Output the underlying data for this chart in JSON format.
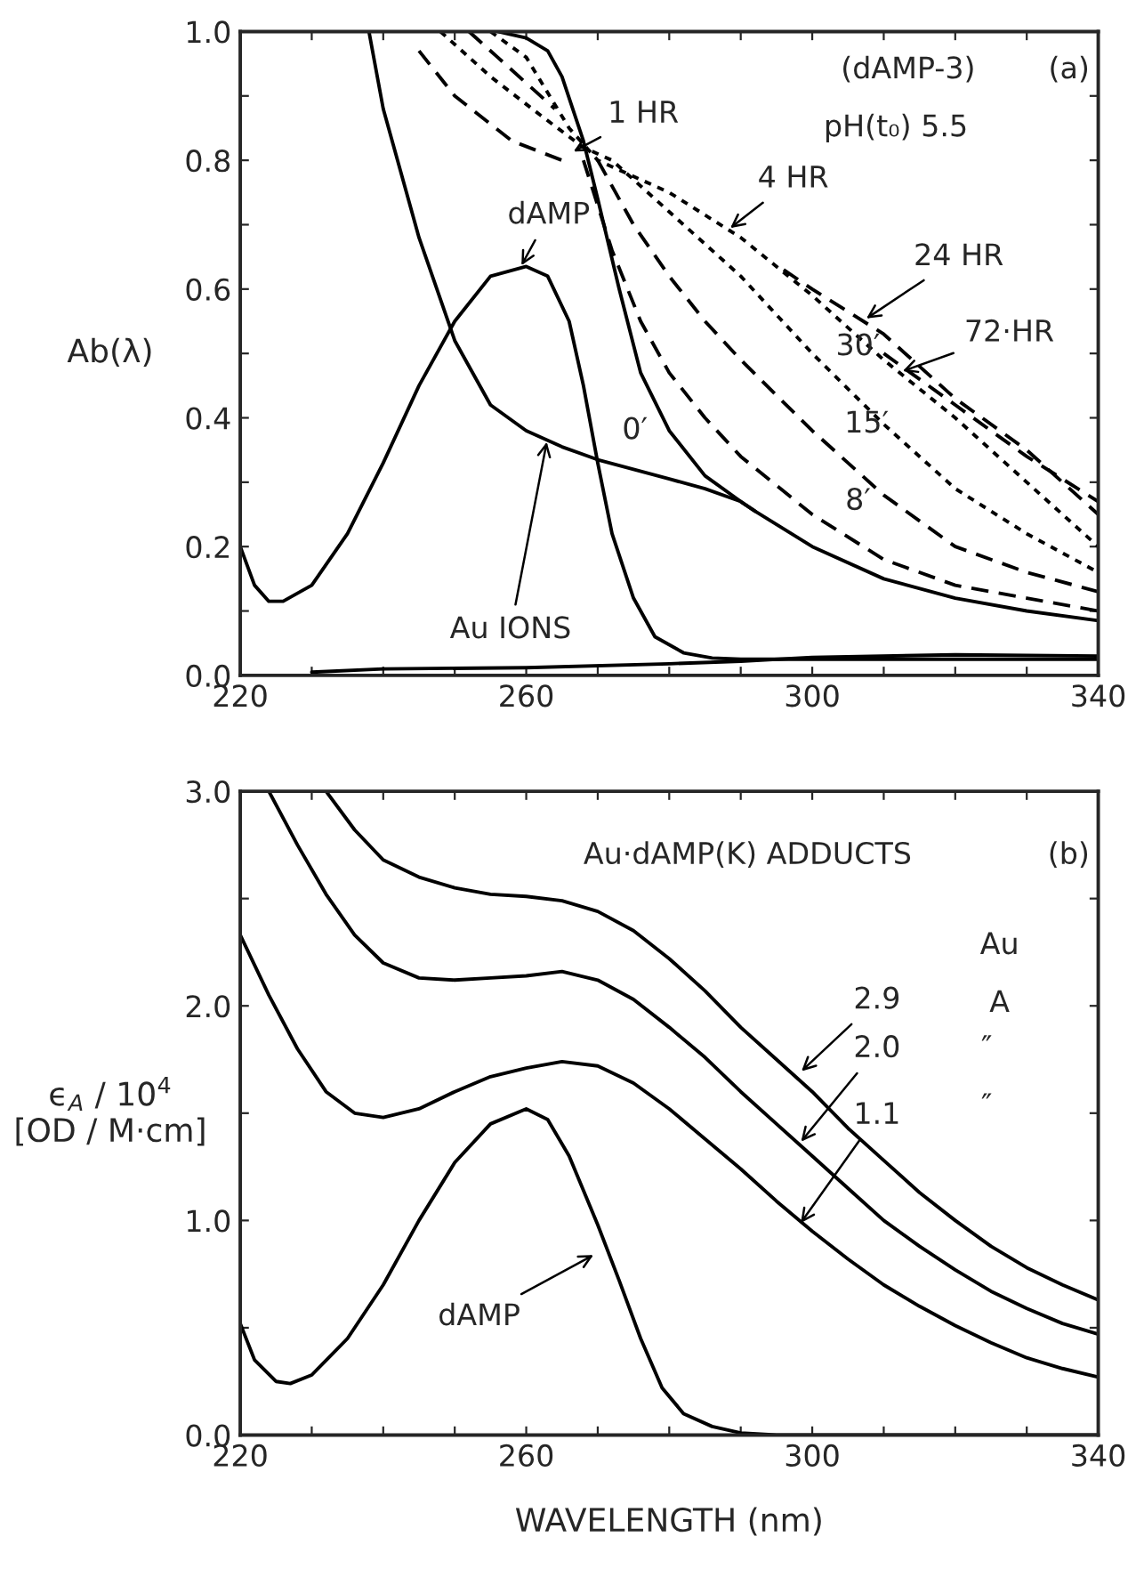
{
  "chart_data": [
    {
      "type": "line",
      "xlim": [
        220,
        340
      ],
      "ylim": [
        0,
        1.0
      ],
      "xticks": [
        220,
        {
          "value": 230,
          "label": null
        },
        {
          "value": 240,
          "label": null
        },
        {
          "value": 250,
          "label": null
        },
        260,
        {
          "value": 270,
          "label": null
        },
        {
          "value": 280,
          "label": null
        },
        {
          "value": 290,
          "label": null
        },
        300,
        {
          "value": 310,
          "label": null
        },
        {
          "value": 320,
          "label": null
        },
        {
          "value": 330,
          "label": null
        },
        340
      ],
      "yticks": [
        {
          "value": 0,
          "label": "0.0"
        },
        {
          "value": 0.1,
          "label": null
        },
        {
          "value": 0.2,
          "label": "0.2"
        },
        {
          "value": 0.3,
          "label": null
        },
        {
          "value": 0.4,
          "label": "0.4"
        },
        {
          "value": 0.5,
          "label": null
        },
        {
          "value": 0.6,
          "label": "0.6"
        },
        {
          "value": 0.7,
          "label": null
        },
        {
          "value": 0.8,
          "label": "0.8"
        },
        {
          "value": 0.9,
          "label": null
        },
        {
          "value": 1.0,
          "label": "1.0"
        }
      ],
      "ylabel": "Ab(λ)",
      "grid": false,
      "legend": false,
      "series": [
        {
          "color": "#000000",
          "line_style": "solid",
          "x": [
            220,
            222,
            224,
            226,
            230,
            235,
            240,
            245,
            250,
            255,
            260,
            263,
            266,
            268,
            270,
            272,
            275,
            278,
            282,
            286,
            290,
            300,
            340
          ],
          "values": [
            0.2,
            0.14,
            0.115,
            0.115,
            0.14,
            0.22,
            0.33,
            0.45,
            0.55,
            0.62,
            0.635,
            0.62,
            0.55,
            0.45,
            0.33,
            0.22,
            0.12,
            0.06,
            0.035,
            0.027,
            0.025,
            0.025,
            0.025
          ]
        },
        {
          "color": "#000000",
          "line_style": "solid",
          "x": [
            238,
            240,
            245,
            250,
            255,
            260,
            265,
            270,
            275,
            280,
            285,
            290,
            292,
            300,
            310,
            320,
            330,
            340
          ],
          "values": [
            1.0,
            0.88,
            0.68,
            0.52,
            0.42,
            0.38,
            0.355,
            0.335,
            0.32,
            0.305,
            0.29,
            0.27,
            0.255,
            0.2,
            0.15,
            0.12,
            0.1,
            0.085
          ]
        },
        {
          "color": "#000000",
          "line_style": "solid",
          "x": [
            256,
            260,
            263,
            265,
            268,
            270,
            273,
            276,
            280,
            285,
            290,
            292
          ],
          "values": [
            1.0,
            0.99,
            0.97,
            0.93,
            0.83,
            0.74,
            0.6,
            0.47,
            0.38,
            0.31,
            0.27,
            0.255
          ]
        },
        {
          "color": "#000000",
          "line_style": "solid",
          "x": [
            230,
            240,
            260,
            280,
            290,
            300,
            320,
            340
          ],
          "values": [
            0.005,
            0.01,
            0.012,
            0.018,
            0.022,
            0.028,
            0.032,
            0.03
          ]
        },
        {
          "color": "#000000",
          "line_style": "dashed",
          "x": [
            268,
            272,
            276,
            280,
            285,
            290,
            300,
            310,
            320,
            330,
            340
          ],
          "values": [
            0.8,
            0.66,
            0.55,
            0.47,
            0.4,
            0.34,
            0.25,
            0.18,
            0.14,
            0.12,
            0.1
          ]
        },
        {
          "color": "#000000",
          "line_style": "dashed",
          "x": [
            270,
            275,
            280,
            285,
            290,
            300,
            310,
            320,
            330,
            340
          ],
          "values": [
            0.8,
            0.7,
            0.62,
            0.55,
            0.49,
            0.38,
            0.28,
            0.2,
            0.16,
            0.13
          ]
        },
        {
          "color": "#000000",
          "line_style": "dotted",
          "x": [
            248,
            255,
            262,
            268,
            272,
            280,
            290,
            300,
            310,
            320,
            330,
            340
          ],
          "values": [
            1.0,
            0.93,
            0.87,
            0.82,
            0.8,
            0.72,
            0.62,
            0.5,
            0.39,
            0.29,
            0.22,
            0.16
          ]
        },
        {
          "color": "#000000",
          "line_style": "dashed",
          "x": [
            252,
            256,
            260,
            264
          ],
          "values": [
            1.0,
            0.96,
            0.92,
            0.88
          ]
        },
        {
          "color": "#000000",
          "line_style": "dotted",
          "x": [
            255,
            260,
            266,
            270,
            280,
            290,
            300,
            310,
            320,
            330,
            340
          ],
          "values": [
            1.0,
            0.96,
            0.85,
            0.8,
            0.75,
            0.68,
            0.59,
            0.49,
            0.4,
            0.3,
            0.2
          ]
        },
        {
          "color": "#000000",
          "line_style": "dashed",
          "x": [
            245,
            250,
            258,
            265
          ],
          "values": [
            0.97,
            0.9,
            0.83,
            0.8
          ]
        },
        {
          "color": "#000000",
          "line_style": "dashed",
          "x": [
            296,
            300,
            310,
            320,
            330,
            340
          ],
          "values": [
            0.63,
            0.6,
            0.53,
            0.43,
            0.35,
            0.25
          ]
        },
        {
          "color": "#000000",
          "line_style": "dashed",
          "x": [
            310,
            320,
            330,
            340
          ],
          "values": [
            0.5,
            0.42,
            0.34,
            0.27
          ]
        }
      ],
      "annotations": [
        "(dAMP-3)",
        "pH(t₀) 5.5",
        "(a)",
        "30′",
        "15′",
        "8′",
        "0′",
        {
          "text": "1 HR",
          "x": 266,
          "y": 0.81
        },
        {
          "text": "4 HR",
          "x": 288,
          "y": 0.69
        },
        {
          "text": "24 HR",
          "x": 307,
          "y": 0.55
        },
        {
          "text": "72·HR",
          "x": 312,
          "y": 0.47
        },
        {
          "text": "dAMP",
          "x": 259,
          "y": 0.63
        },
        {
          "text": "Au IONS",
          "x": 263,
          "y": 0.37
        }
      ]
    },
    {
      "type": "line",
      "xlim": [
        220,
        340
      ],
      "ylim": [
        0,
        3.0
      ],
      "xticks": [
        220,
        {
          "value": 230,
          "label": null
        },
        {
          "value": 240,
          "label": null
        },
        {
          "value": 250,
          "label": null
        },
        260,
        {
          "value": 270,
          "label": null
        },
        {
          "value": 280,
          "label": null
        },
        {
          "value": 290,
          "label": null
        },
        300,
        {
          "value": 310,
          "label": null
        },
        {
          "value": 320,
          "label": null
        },
        {
          "value": 330,
          "label": null
        },
        340
      ],
      "yticks": [
        {
          "value": 0,
          "label": "0.0"
        },
        {
          "value": 0.5,
          "label": null
        },
        {
          "value": 1.0,
          "label": "1.0"
        },
        {
          "value": 1.5,
          "label": null
        },
        {
          "value": 2.0,
          "label": "2.0"
        },
        {
          "value": 2.5,
          "label": null
        },
        {
          "value": 3.0,
          "label": "3.0"
        }
      ],
      "ylabel": "ϵ$_{A}$ / 10$^{4}$\n[OD / M·cm]",
      "xlabel": "WAVELENGTH (nm)",
      "grid": false,
      "legend": false,
      "series": [
        {
          "color": "#000000",
          "line_style": "solid",
          "x": [
            232,
            236,
            240,
            245,
            250,
            255,
            260,
            265,
            270,
            275,
            280,
            285,
            290,
            295,
            300,
            305,
            310,
            315,
            320,
            325,
            330,
            335,
            340
          ],
          "values": [
            3.0,
            2.82,
            2.68,
            2.6,
            2.55,
            2.52,
            2.51,
            2.49,
            2.44,
            2.35,
            2.22,
            2.07,
            1.9,
            1.75,
            1.6,
            1.43,
            1.28,
            1.13,
            1.0,
            0.88,
            0.78,
            0.7,
            0.63
          ]
        },
        {
          "color": "#000000",
          "line_style": "solid",
          "x": [
            224,
            228,
            232,
            236,
            240,
            245,
            250,
            255,
            260,
            265,
            270,
            275,
            280,
            285,
            290,
            295,
            300,
            305,
            310,
            315,
            320,
            325,
            330,
            335,
            340
          ],
          "values": [
            3.0,
            2.75,
            2.52,
            2.33,
            2.2,
            2.13,
            2.12,
            2.13,
            2.14,
            2.16,
            2.12,
            2.03,
            1.9,
            1.76,
            1.6,
            1.45,
            1.3,
            1.15,
            1.0,
            0.88,
            0.77,
            0.67,
            0.59,
            0.52,
            0.47
          ]
        },
        {
          "color": "#000000",
          "line_style": "solid",
          "x": [
            220,
            224,
            228,
            232,
            236,
            240,
            245,
            250,
            255,
            260,
            265,
            270,
            275,
            280,
            285,
            290,
            295,
            300,
            305,
            310,
            315,
            320,
            325,
            330,
            335,
            340
          ],
          "values": [
            2.33,
            2.05,
            1.8,
            1.6,
            1.5,
            1.48,
            1.52,
            1.6,
            1.67,
            1.71,
            1.74,
            1.72,
            1.64,
            1.52,
            1.38,
            1.24,
            1.09,
            0.95,
            0.82,
            0.7,
            0.6,
            0.51,
            0.43,
            0.36,
            0.31,
            0.27
          ]
        },
        {
          "color": "#000000",
          "line_style": "solid",
          "x": [
            220,
            222,
            225,
            227,
            230,
            235,
            240,
            245,
            250,
            255,
            260,
            263,
            266,
            270,
            273,
            276,
            279,
            282,
            286,
            290,
            295,
            340
          ],
          "values": [
            0.52,
            0.35,
            0.25,
            0.24,
            0.28,
            0.45,
            0.7,
            1.0,
            1.27,
            1.45,
            1.52,
            1.47,
            1.3,
            0.98,
            0.72,
            0.45,
            0.22,
            0.1,
            0.04,
            0.01,
            0.0,
            0.0
          ]
        }
      ],
      "annotations": [
        "Au·dAMP(K) ADDUCTS",
        "(b)",
        {
          "text": "2.9",
          "x": 298,
          "y": 1.68
        },
        {
          "text": "2.0",
          "x": 298,
          "y": 1.35
        },
        {
          "text": "1.1",
          "x": 298,
          "y": 0.97
        },
        {
          "text": "dAMP",
          "x": 270,
          "y": 0.85
        },
        "Au",
        "A",
        "″",
        "″"
      ]
    }
  ]
}
